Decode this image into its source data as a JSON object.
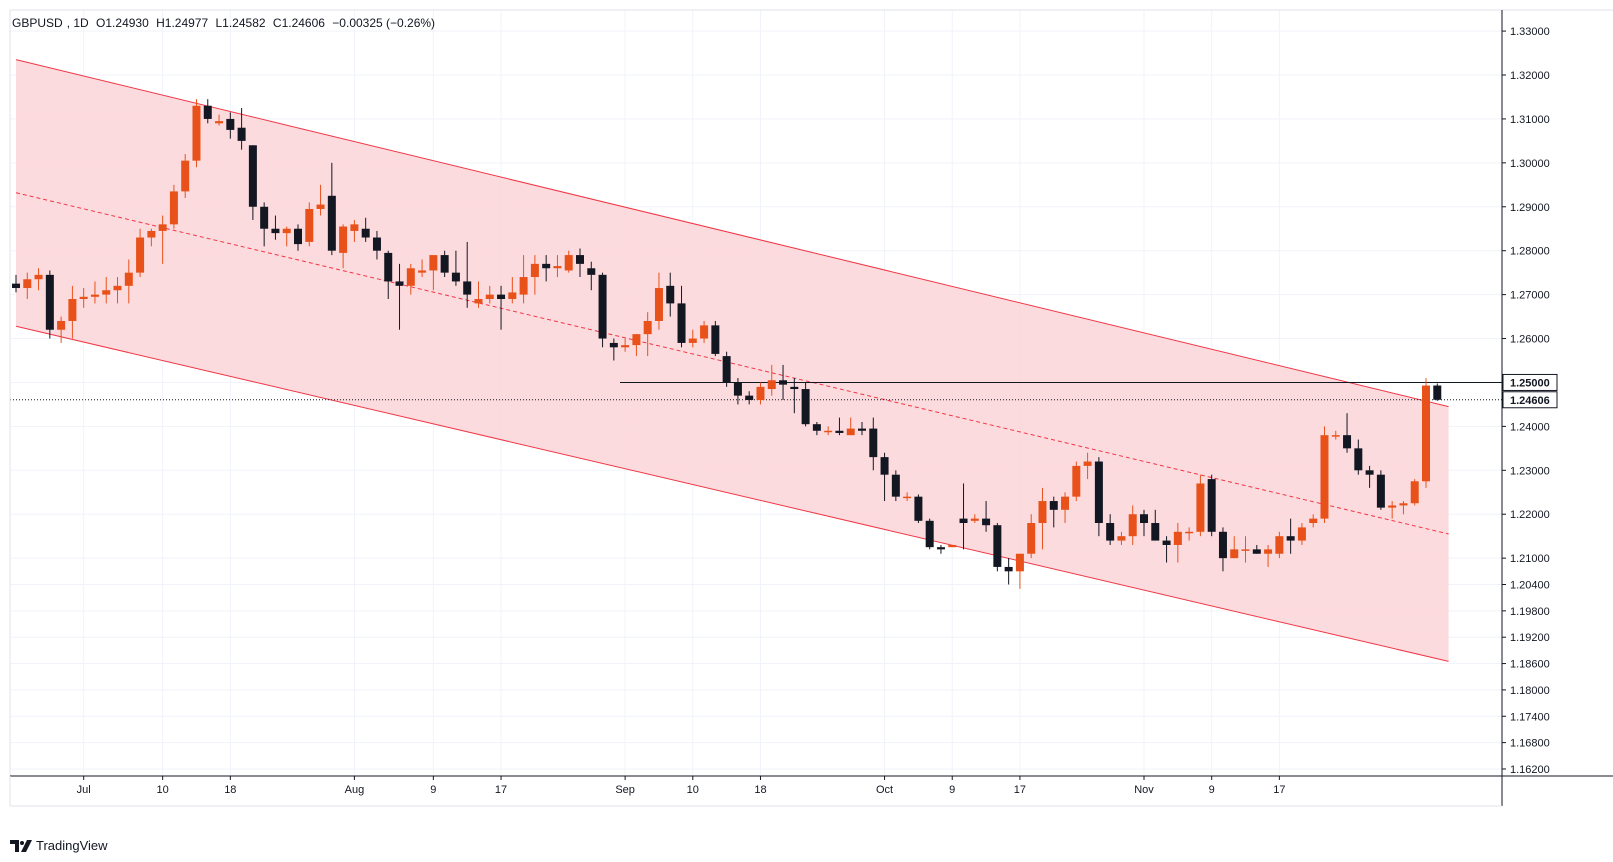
{
  "header": {
    "symbol": "GBPUSD",
    "interval": "1D",
    "open": "O1.24930",
    "high": "H1.24977",
    "low": "L1.24582",
    "close": "C1.24606",
    "change": "−0.00325 (−0.26%)"
  },
  "branding": {
    "name": "TradingView"
  },
  "colors": {
    "up": "#e8521a",
    "down": "#131722",
    "channel_fill": "#fbd5d8",
    "channel_line": "#f23645",
    "grid": "#f0f3fa",
    "level_line": "#131722"
  },
  "chart_data": {
    "type": "candlestick",
    "title": "GBPUSD, 1D",
    "y_axis": {
      "range": [
        1.1604,
        1.3348
      ],
      "ticks": [
        "1.33000",
        "1.32000",
        "1.31000",
        "1.30000",
        "1.29000",
        "1.28000",
        "1.27000",
        "1.26000",
        "1.25000",
        "1.24000",
        "1.23000",
        "1.22000",
        "1.21000",
        "1.20400",
        "1.19800",
        "1.19200",
        "1.18600",
        "1.18000",
        "1.17400",
        "1.16800",
        "1.16200"
      ],
      "tick_values": [
        1.33,
        1.32,
        1.31,
        1.3,
        1.29,
        1.28,
        1.27,
        1.26,
        1.25,
        1.24,
        1.23,
        1.22,
        1.21,
        1.204,
        1.198,
        1.192,
        1.186,
        1.18,
        1.174,
        1.168,
        1.162
      ],
      "labeled_levels": [
        {
          "label": "1.25000",
          "value": 1.25,
          "style": "solid"
        },
        {
          "label": "1.24606",
          "value": 1.24606,
          "style": "dotted"
        }
      ]
    },
    "x_axis": {
      "labels": [
        {
          "label": "Jul",
          "index": 6
        },
        {
          "label": "10",
          "index": 13
        },
        {
          "label": "18",
          "index": 19
        },
        {
          "label": "Aug",
          "index": 30
        },
        {
          "label": "9",
          "index": 37
        },
        {
          "label": "17",
          "index": 43
        },
        {
          "label": "Sep",
          "index": 54
        },
        {
          "label": "10",
          "index": 60
        },
        {
          "label": "18",
          "index": 66
        },
        {
          "label": "Oct",
          "index": 77
        },
        {
          "label": "9",
          "index": 83
        },
        {
          "label": "17",
          "index": 89
        },
        {
          "label": "Nov",
          "index": 100
        },
        {
          "label": "9",
          "index": 106
        },
        {
          "label": "17",
          "index": 112
        }
      ]
    },
    "candles": [
      [
        1.2725,
        1.2745,
        1.2705,
        1.2715
      ],
      [
        1.2715,
        1.275,
        1.269,
        1.2735
      ],
      [
        1.2735,
        1.276,
        1.271,
        1.2745
      ],
      [
        1.2745,
        1.2755,
        1.26,
        1.262
      ],
      [
        1.262,
        1.265,
        1.259,
        1.264
      ],
      [
        1.264,
        1.272,
        1.26,
        1.269
      ],
      [
        1.269,
        1.2715,
        1.267,
        1.2695
      ],
      [
        1.2695,
        1.273,
        1.268,
        1.27
      ],
      [
        1.27,
        1.274,
        1.268,
        1.271
      ],
      [
        1.271,
        1.274,
        1.268,
        1.272
      ],
      [
        1.272,
        1.278,
        1.268,
        1.275
      ],
      [
        1.275,
        1.285,
        1.274,
        1.283
      ],
      [
        1.283,
        1.285,
        1.281,
        1.2845
      ],
      [
        1.2845,
        1.288,
        1.277,
        1.286
      ],
      [
        1.286,
        1.295,
        1.285,
        1.2935
      ],
      [
        1.2935,
        1.302,
        1.292,
        1.3005
      ],
      [
        1.3005,
        1.3145,
        1.299,
        1.313
      ],
      [
        1.313,
        1.3145,
        1.309,
        1.31
      ],
      [
        1.309,
        1.311,
        1.3085,
        1.3095
      ],
      [
        1.31,
        1.3115,
        1.3055,
        1.3075
      ],
      [
        1.308,
        1.3125,
        1.303,
        1.305
      ],
      [
        1.304,
        1.304,
        1.287,
        1.29
      ],
      [
        1.29,
        1.291,
        1.281,
        1.285
      ],
      [
        1.285,
        1.288,
        1.2825,
        1.284
      ],
      [
        1.284,
        1.2855,
        1.281,
        1.285
      ],
      [
        1.285,
        1.286,
        1.28,
        1.2815
      ],
      [
        1.282,
        1.291,
        1.281,
        1.2895
      ],
      [
        1.2895,
        1.295,
        1.288,
        1.2905
      ],
      [
        1.2925,
        1.3,
        1.279,
        1.28
      ],
      [
        1.2795,
        1.286,
        1.276,
        1.2855
      ],
      [
        1.2845,
        1.287,
        1.282,
        1.286
      ],
      [
        1.285,
        1.2875,
        1.282,
        1.283
      ],
      [
        1.283,
        1.2845,
        1.278,
        1.28
      ],
      [
        1.2795,
        1.28,
        1.269,
        1.273
      ],
      [
        1.273,
        1.277,
        1.262,
        1.272
      ],
      [
        1.272,
        1.277,
        1.27,
        1.276
      ],
      [
        1.275,
        1.278,
        1.274,
        1.2755
      ],
      [
        1.2755,
        1.2785,
        1.271,
        1.279
      ],
      [
        1.279,
        1.28,
        1.274,
        1.275
      ],
      [
        1.275,
        1.28,
        1.272,
        1.273
      ],
      [
        1.273,
        1.282,
        1.267,
        1.27
      ],
      [
        1.268,
        1.273,
        1.267,
        1.269
      ],
      [
        1.269,
        1.272,
        1.268,
        1.27
      ],
      [
        1.27,
        1.272,
        1.262,
        1.269
      ],
      [
        1.269,
        1.274,
        1.268,
        1.2705
      ],
      [
        1.27,
        1.279,
        1.268,
        1.274
      ],
      [
        1.274,
        1.279,
        1.27,
        1.277
      ],
      [
        1.277,
        1.279,
        1.273,
        1.276
      ],
      [
        1.276,
        1.279,
        1.274,
        1.2765
      ],
      [
        1.2755,
        1.28,
        1.275,
        1.279
      ],
      [
        1.279,
        1.2805,
        1.274,
        1.277
      ],
      [
        1.276,
        1.2775,
        1.271,
        1.2745
      ],
      [
        1.2745,
        1.275,
        1.258,
        1.26
      ],
      [
        1.259,
        1.26,
        1.255,
        1.258
      ],
      [
        1.258,
        1.26,
        1.257,
        1.2585
      ],
      [
        1.2585,
        1.261,
        1.256,
        1.261
      ],
      [
        1.261,
        1.266,
        1.256,
        1.264
      ],
      [
        1.264,
        1.275,
        1.262,
        1.2715
      ],
      [
        1.272,
        1.275,
        1.265,
        1.268
      ],
      [
        1.268,
        1.272,
        1.258,
        1.259
      ],
      [
        1.259,
        1.262,
        1.258,
        1.26
      ],
      [
        1.26,
        1.264,
        1.259,
        1.263
      ],
      [
        1.263,
        1.264,
        1.256,
        1.2565
      ],
      [
        1.256,
        1.257,
        1.249,
        1.25
      ],
      [
        1.25,
        1.251,
        1.245,
        1.247
      ],
      [
        1.247,
        1.248,
        1.245,
        1.246
      ],
      [
        1.246,
        1.25,
        1.245,
        1.249
      ],
      [
        1.2485,
        1.254,
        1.247,
        1.2505
      ],
      [
        1.2505,
        1.254,
        1.246,
        1.2495
      ],
      [
        1.249,
        1.251,
        1.243,
        1.2485
      ],
      [
        1.2485,
        1.25,
        1.24,
        1.2405
      ],
      [
        1.2405,
        1.241,
        1.238,
        1.239
      ],
      [
        1.239,
        1.24,
        1.238,
        1.239
      ],
      [
        1.239,
        1.242,
        1.238,
        1.2385
      ],
      [
        1.238,
        1.242,
        1.238,
        1.2395
      ],
      [
        1.2395,
        1.241,
        1.238,
        1.239
      ],
      [
        1.2395,
        1.242,
        1.23,
        1.233
      ],
      [
        1.233,
        1.234,
        1.223,
        1.229
      ],
      [
        1.229,
        1.23,
        1.223,
        1.224
      ],
      [
        1.224,
        1.225,
        1.223,
        1.224
      ],
      [
        1.224,
        1.2245,
        1.218,
        1.2185
      ],
      [
        1.2185,
        1.219,
        1.212,
        1.2125
      ],
      [
        1.2125,
        1.213,
        1.211,
        1.212
      ],
      [
        1.2125,
        1.213,
        1.2125,
        1.213
      ],
      [
        1.219,
        1.227,
        1.212,
        1.218
      ],
      [
        1.2185,
        1.22,
        1.218,
        1.219
      ],
      [
        1.219,
        1.223,
        1.216,
        1.2175
      ],
      [
        1.2175,
        1.218,
        1.207,
        1.208
      ],
      [
        1.208,
        1.21,
        1.204,
        1.207
      ],
      [
        1.207,
        1.211,
        1.203,
        1.211
      ],
      [
        1.211,
        1.22,
        1.21,
        1.218
      ],
      [
        1.218,
        1.226,
        1.212,
        1.223
      ],
      [
        1.223,
        1.224,
        1.217,
        1.221
      ],
      [
        1.221,
        1.225,
        1.218,
        1.224
      ],
      [
        1.224,
        1.232,
        1.223,
        1.231
      ],
      [
        1.231,
        1.234,
        1.228,
        1.232
      ],
      [
        1.232,
        1.233,
        1.215,
        1.218
      ],
      [
        1.218,
        1.22,
        1.213,
        1.214
      ],
      [
        1.214,
        1.216,
        1.213,
        1.215
      ],
      [
        1.215,
        1.222,
        1.213,
        1.22
      ],
      [
        1.22,
        1.221,
        1.215,
        1.218
      ],
      [
        1.218,
        1.221,
        1.214,
        1.214
      ],
      [
        1.214,
        1.215,
        1.209,
        1.213
      ],
      [
        1.213,
        1.218,
        1.209,
        1.216
      ],
      [
        1.216,
        1.217,
        1.214,
        1.216
      ],
      [
        1.216,
        1.229,
        1.215,
        1.227
      ],
      [
        1.228,
        1.229,
        1.215,
        1.216
      ],
      [
        1.216,
        1.217,
        1.207,
        1.21
      ],
      [
        1.21,
        1.215,
        1.21,
        1.212
      ]
    ],
    "tail_candles": [
      [
        1.212,
        1.215,
        1.209,
        1.212
      ],
      [
        1.212,
        1.213,
        1.211,
        1.211
      ],
      [
        1.211,
        1.213,
        1.208,
        1.212
      ],
      [
        1.211,
        1.216,
        1.21,
        1.215
      ],
      [
        1.215,
        1.219,
        1.211,
        1.214
      ],
      [
        1.214,
        1.218,
        1.213,
        1.217
      ],
      [
        1.218,
        1.22,
        1.217,
        1.219
      ],
      [
        1.219,
        1.24,
        1.218,
        1.238
      ],
      [
        1.238,
        1.239,
        1.237,
        1.238
      ],
      [
        1.238,
        1.243,
        1.234,
        1.235
      ],
      [
        1.235,
        1.237,
        1.229,
        1.23
      ],
      [
        1.23,
        1.231,
        1.226,
        1.229
      ],
      [
        1.229,
        1.23,
        1.221,
        1.2215
      ],
      [
        1.2215,
        1.223,
        1.219,
        1.222
      ],
      [
        1.222,
        1.223,
        1.22,
        1.2225
      ],
      [
        1.2225,
        1.228,
        1.222,
        1.2275
      ],
      [
        1.2275,
        1.251,
        1.226,
        1.2493
      ],
      [
        1.2493,
        1.24977,
        1.24582,
        1.24606
      ]
    ]
  }
}
